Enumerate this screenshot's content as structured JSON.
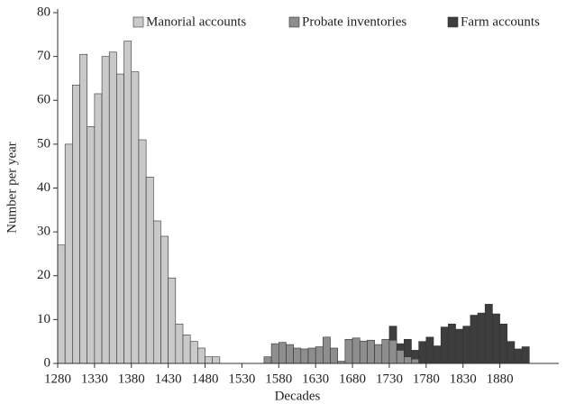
{
  "chart_data": {
    "type": "bar",
    "x_label": "Decades",
    "y_label": "Number per year",
    "x": [
      1280,
      1290,
      1300,
      1310,
      1320,
      1330,
      1340,
      1350,
      1360,
      1370,
      1380,
      1390,
      1400,
      1410,
      1420,
      1430,
      1440,
      1450,
      1460,
      1470,
      1480,
      1490,
      1500,
      1510,
      1520,
      1530,
      1540,
      1550,
      1560,
      1570,
      1580,
      1590,
      1600,
      1610,
      1620,
      1630,
      1640,
      1650,
      1660,
      1670,
      1680,
      1690,
      1700,
      1710,
      1720,
      1730,
      1740,
      1750,
      1760,
      1770,
      1780,
      1790,
      1800,
      1810,
      1820,
      1830,
      1840,
      1850,
      1860,
      1870,
      1880,
      1890,
      1900,
      1910
    ],
    "series": [
      {
        "name": "Manorial accounts",
        "color": "#c9c9c9",
        "values": [
          27,
          50,
          63.5,
          70.5,
          54,
          61.5,
          70,
          71,
          66,
          73.5,
          66.5,
          51,
          42.5,
          32.5,
          29,
          19.5,
          9,
          6.5,
          5,
          3.5,
          1.5,
          1.5,
          null,
          null,
          null,
          null,
          null,
          null,
          null,
          null,
          null,
          null,
          null,
          null,
          null,
          null,
          null,
          null,
          null,
          null,
          null,
          null,
          null,
          null,
          null,
          null,
          null,
          null,
          null,
          null,
          null,
          null,
          null,
          null,
          null,
          null,
          null,
          null,
          null,
          null,
          null,
          null,
          null,
          null
        ]
      },
      {
        "name": "Farm accounts",
        "color": "#3d3d3d",
        "values": [
          null,
          null,
          null,
          null,
          null,
          null,
          null,
          null,
          null,
          null,
          null,
          null,
          null,
          null,
          null,
          null,
          null,
          null,
          null,
          null,
          null,
          null,
          null,
          null,
          null,
          null,
          null,
          null,
          null,
          null,
          null,
          null,
          null,
          null,
          null,
          null,
          null,
          null,
          null,
          null,
          null,
          null,
          null,
          null,
          null,
          8.5,
          4.5,
          5.5,
          3,
          5,
          6,
          4,
          8.3,
          9,
          7.8,
          8.5,
          11,
          11.5,
          13.5,
          11.3,
          9,
          5,
          3.3,
          3.8
        ]
      },
      {
        "name": "Probate inventories",
        "color": "#8e8e8e",
        "values": [
          null,
          null,
          null,
          null,
          null,
          null,
          null,
          null,
          null,
          null,
          null,
          null,
          null,
          null,
          null,
          null,
          null,
          null,
          null,
          null,
          null,
          null,
          null,
          null,
          null,
          null,
          null,
          null,
          1.5,
          4.5,
          4.8,
          4.3,
          3.5,
          3.3,
          3.5,
          3.8,
          6,
          3.5,
          0.5,
          5.5,
          5.8,
          5.1,
          5.3,
          4.3,
          5.5,
          5.3,
          3,
          1.5,
          1,
          null,
          null,
          null,
          null,
          null,
          null,
          null,
          null,
          null,
          null,
          null,
          null,
          null,
          null,
          null
        ]
      }
    ],
    "legend_order": [
      0,
      2,
      1
    ],
    "xlim": [
      1280,
      1960
    ],
    "ylim": [
      0,
      80
    ],
    "xticks": [
      1280,
      1330,
      1380,
      1430,
      1480,
      1530,
      1580,
      1630,
      1680,
      1730,
      1780,
      1830,
      1880
    ],
    "yticks": [
      0,
      10,
      20,
      30,
      40,
      50,
      60,
      70,
      80
    ]
  }
}
